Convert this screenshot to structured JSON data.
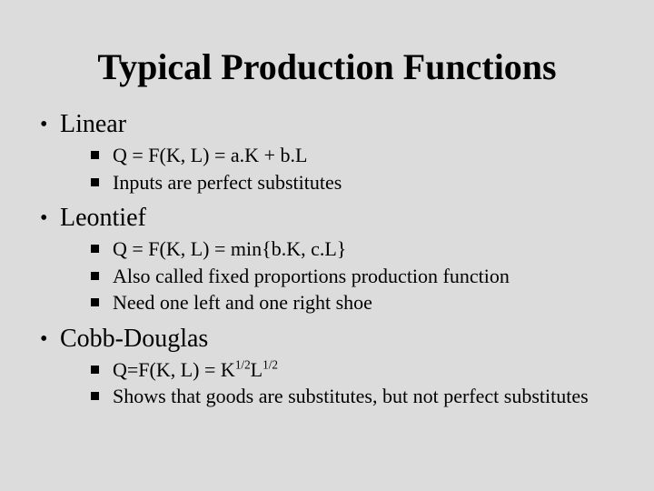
{
  "background_color": "#dcdcdc",
  "text_color": "#000000",
  "font_family": "Times New Roman",
  "title": "Typical Production Functions",
  "title_fontsize": 40,
  "level1_fontsize": 28,
  "level2_fontsize": 22,
  "sections": [
    {
      "heading": "Linear",
      "items": [
        {
          "text": "Q = F(K, L) = a.K + b.L"
        },
        {
          "text": "Inputs are perfect substitutes"
        }
      ]
    },
    {
      "heading": "Leontief",
      "items": [
        {
          "text": "Q = F(K, L) = min{b.K, c.L}"
        },
        {
          "text": "Also called fixed proportions production function"
        },
        {
          "text": "Need one left and one right shoe"
        }
      ]
    },
    {
      "heading": "Cobb-Douglas",
      "items": [
        {
          "html": "Q=F(K, L) = K<sup>1/2</sup>L<sup>1/2</sup>",
          "text": "Q=F(K, L) = K^1/2 L^1/2"
        },
        {
          "text": "Shows that goods are substitutes, but not perfect substitutes"
        }
      ]
    }
  ]
}
